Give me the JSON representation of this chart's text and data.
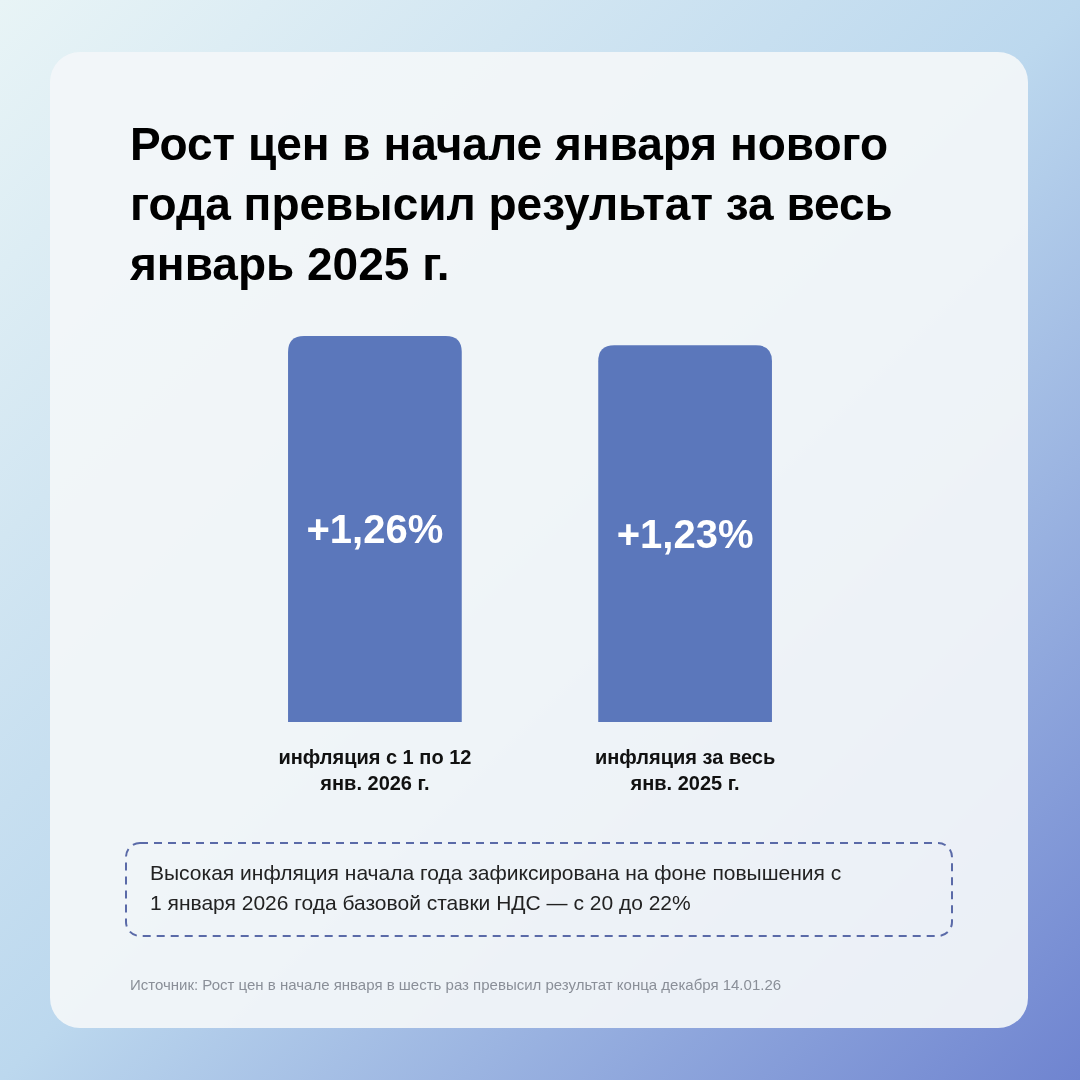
{
  "chart_data": {
    "type": "bar",
    "title": "Рост цен в начале января нового года превысил результат за весь январь 2025 г.",
    "categories": [
      "инфляция с 1 по 12 янв. 2026 г.",
      "инфляция за весь янв. 2025 г."
    ],
    "values": [
      1.26,
      1.23
    ],
    "color": "#5b77bb",
    "value_labels": [
      "+1,26%",
      "+1,23%"
    ],
    "annotations": [
      "Высокая инфляция начала года зафиксирована на фоне повышения с 1 января 2026 года базовой ставки НДС — с 20 до 22%",
      "Источник: Рост цен в начале января в шесть раз превысил результат конца декабря 14.01.26"
    ]
  }
}
